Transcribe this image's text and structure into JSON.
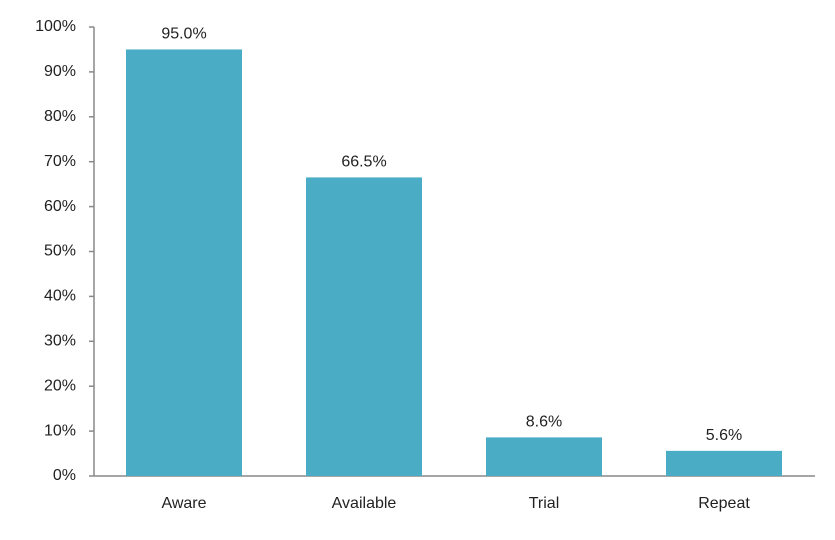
{
  "chart_data": {
    "type": "bar",
    "categories": [
      "Aware",
      "Available",
      "Trial",
      "Repeat"
    ],
    "values": [
      95.0,
      66.5,
      8.6,
      5.6
    ],
    "value_labels": [
      "95.0%",
      "66.5%",
      "8.6%",
      "5.6%"
    ],
    "color": "#4bacc6",
    "ylim": [
      0,
      100
    ],
    "yticks": [
      {
        "value": 0,
        "label": "0%"
      },
      {
        "value": 10,
        "label": "10%"
      },
      {
        "value": 20,
        "label": "20%"
      },
      {
        "value": 30,
        "label": "30%"
      },
      {
        "value": 40,
        "label": "40%"
      },
      {
        "value": 50,
        "label": "50%"
      },
      {
        "value": 60,
        "label": "60%"
      },
      {
        "value": 70,
        "label": "70%"
      },
      {
        "value": 80,
        "label": "80%"
      },
      {
        "value": 90,
        "label": "90%"
      },
      {
        "value": 100,
        "label": "100%"
      }
    ],
    "grid": false
  }
}
